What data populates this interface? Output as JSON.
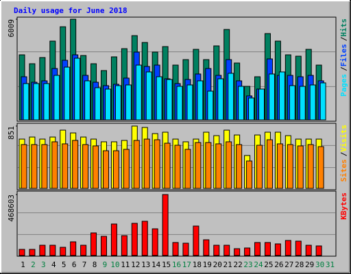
{
  "title": "Daily usage for June 2018",
  "legend_separator": "/",
  "categories": [
    "1",
    "2",
    "3",
    "4",
    "5",
    "6",
    "7",
    "8",
    "9",
    "10",
    "11",
    "12",
    "13",
    "14",
    "15",
    "16",
    "17",
    "18",
    "19",
    "20",
    "21",
    "22",
    "23",
    "24",
    "25",
    "26",
    "27",
    "28",
    "29",
    "30",
    "31"
  ],
  "label_colors": [
    "#000000",
    "#008040",
    "#008040",
    "#000000",
    "#000000",
    "#000000",
    "#000000",
    "#000000",
    "#008040",
    "#008040",
    "#000000",
    "#000000",
    "#000000",
    "#000000",
    "#000000",
    "#008040",
    "#008040",
    "#000000",
    "#000000",
    "#000000",
    "#000000",
    "#000000",
    "#008040",
    "#008040",
    "#000000",
    "#000000",
    "#000000",
    "#000000",
    "#000000",
    "#008040",
    "#008040"
  ],
  "chart_data": [
    {
      "type": "bar",
      "ylim": [
        0,
        6009
      ],
      "yticks": [
        6009
      ],
      "series": [
        {
          "name": "Hits",
          "color": "#008060",
          "values": [
            3883,
            3352,
            3720,
            4701,
            5559,
            6009,
            3842,
            3352,
            2943,
            3761,
            4251,
            5028,
            4619,
            4047,
            4374,
            3270,
            3597,
            4210,
            3597,
            4415,
            5396,
            3393,
            2003,
            2575,
            5151,
            4701,
            3883,
            3802,
            4210,
            3270,
            null
          ]
        },
        {
          "name": "Files",
          "color": "#0040ff",
          "values": [
            2575,
            2248,
            2330,
            3066,
            3556,
            3883,
            2657,
            2248,
            2044,
            2126,
            2494,
            4047,
            3189,
            3270,
            2453,
            2167,
            2412,
            2739,
            3066,
            2657,
            3597,
            2330,
            1431,
            1840,
            3638,
            2657,
            2657,
            2575,
            2657,
            2330,
            null
          ]
        },
        {
          "name": "Pages",
          "color": "#00e0ff",
          "values": [
            2167,
            2167,
            2167,
            2657,
            3148,
            3679,
            2330,
            1921,
            1840,
            2044,
            2085,
            3270,
            2862,
            2575,
            2412,
            2003,
            2085,
            2330,
            1717,
            2453,
            2780,
            2003,
            1308,
            1840,
            2739,
            2862,
            2044,
            2003,
            2085,
            2208,
            null
          ]
        }
      ]
    },
    {
      "type": "bar",
      "ylim": [
        0,
        851
      ],
      "yticks": [
        851
      ],
      "series": [
        {
          "name": "Visits",
          "color": "#ffff00",
          "values": [
            673,
            701,
            673,
            701,
            795,
            757,
            701,
            673,
            636,
            636,
            655,
            851,
            832,
            748,
            767,
            673,
            636,
            673,
            767,
            720,
            795,
            729,
            449,
            729,
            767,
            767,
            720,
            673,
            673,
            673,
            null
          ]
        },
        {
          "name": "Sites",
          "color": "#ff8000",
          "values": [
            598,
            598,
            598,
            636,
            608,
            655,
            598,
            580,
            514,
            514,
            533,
            655,
            673,
            664,
            617,
            589,
            533,
            626,
            626,
            608,
            636,
            598,
            374,
            589,
            664,
            608,
            598,
            580,
            598,
            570,
            null
          ]
        }
      ]
    },
    {
      "type": "bar",
      "ylim": [
        0,
        468603
      ],
      "yticks": [
        468603
      ],
      "series": [
        {
          "name": "KBytes",
          "color": "#ff0000",
          "values": [
            47385,
            47385,
            78975,
            78975,
            63180,
            105300,
            78975,
            173745,
            147420,
            242190,
            152685,
            247455,
            263250,
            205335,
            468603,
            100035,
            94770,
            226395,
            121095,
            78975,
            78975,
            52650,
            57915,
            100035,
            100035,
            89505,
            115830,
            110565,
            78975,
            73710,
            null
          ]
        }
      ]
    }
  ]
}
